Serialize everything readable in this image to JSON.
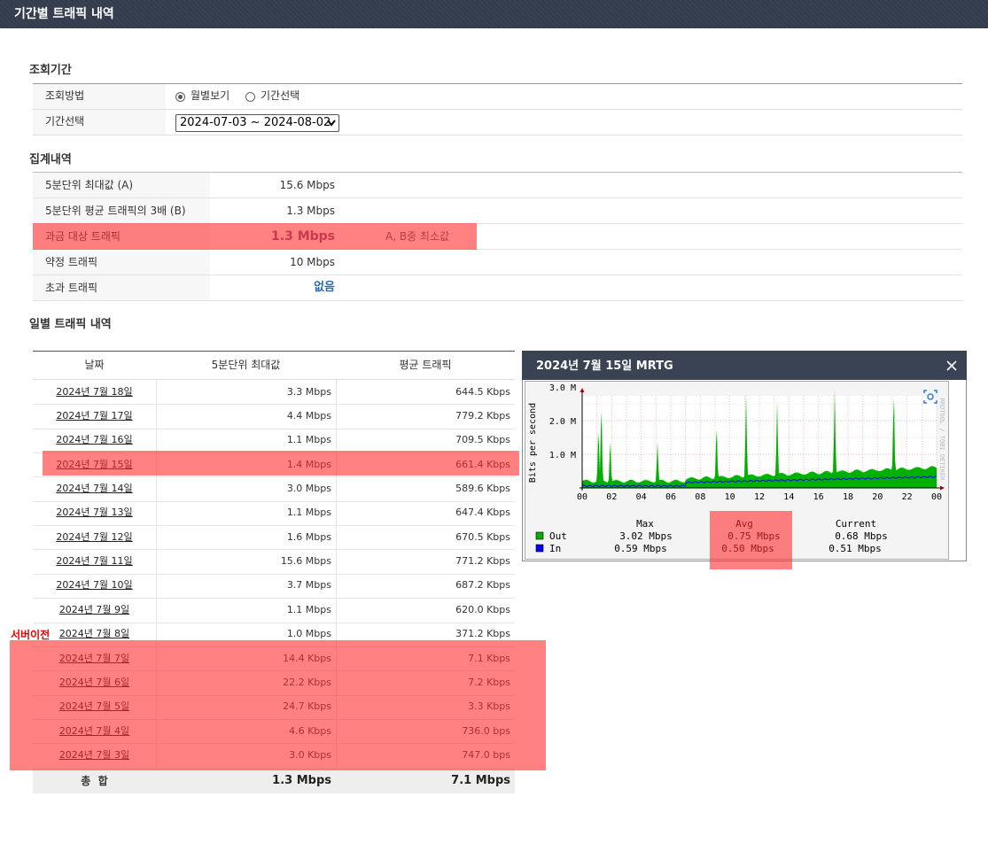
{
  "header": {
    "title": "기간별 트래픽 내역"
  },
  "query": {
    "title": "조회기간",
    "method_label": "조회방법",
    "options": [
      "월별보기",
      "기간선택"
    ],
    "period_label": "기간선택",
    "period_value": "2024-07-03 ~ 2024-08-02"
  },
  "summary": {
    "title": "집계내역",
    "rows": [
      {
        "label": "5분단위 최대값 (A)",
        "value": "15.6 Mbps"
      },
      {
        "label": "5분단위 평균 트래픽의 3배 (B)",
        "value": "1.3 Mbps"
      },
      {
        "label": "과금 대상 트래픽",
        "value": "1.3 Mbps",
        "note": "A, B중 최소값"
      },
      {
        "label": "약정 트래픽",
        "value": "10 Mbps"
      },
      {
        "label": "초과 트래픽",
        "value": "없음"
      }
    ]
  },
  "daily": {
    "title": "일별 트래픽 내역",
    "annotation": "서버이전",
    "columns": [
      "날짜",
      "5분단위 최대값",
      "평균 트래픽"
    ],
    "rows": [
      [
        "2024년 7월 18일",
        "3.3 Mbps",
        "644.5 Kbps"
      ],
      [
        "2024년 7월 17일",
        "4.4 Mbps",
        "779.2 Kbps"
      ],
      [
        "2024년 7월 16일",
        "1.1 Mbps",
        "709.5 Kbps"
      ],
      [
        "2024년 7월 15일",
        "1.4 Mbps",
        "661.4 Kbps"
      ],
      [
        "2024년 7월 14일",
        "3.0 Mbps",
        "589.6 Kbps"
      ],
      [
        "2024년 7월 13일",
        "1.1 Mbps",
        "647.4 Kbps"
      ],
      [
        "2024년 7월 12일",
        "1.6 Mbps",
        "670.5 Kbps"
      ],
      [
        "2024년 7월 11일",
        "15.6 Mbps",
        "771.2 Kbps"
      ],
      [
        "2024년 7월 10일",
        "3.7 Mbps",
        "687.2 Kbps"
      ],
      [
        "2024년 7월 9일",
        "1.1 Mbps",
        "620.0 Kbps"
      ],
      [
        "2024년 7월 8일",
        "1.0 Mbps",
        "371.2 Kbps"
      ],
      [
        "2024년 7월 7일",
        "14.4 Kbps",
        "7.1 Kbps"
      ],
      [
        "2024년 7월 6일",
        "22.2 Kbps",
        "7.2 Kbps"
      ],
      [
        "2024년 7월 5일",
        "24.7 Kbps",
        "3.3 Kbps"
      ],
      [
        "2024년 7월 4일",
        "4.6 Kbps",
        "736.0 bps"
      ],
      [
        "2024년 7월 3일",
        "3.0 Kbps",
        "747.0 bps"
      ]
    ],
    "total": [
      "총  합",
      "1.3 Mbps",
      "7.1 Mbps"
    ]
  },
  "mrtg": {
    "title": "2024년 7월 15일 MRTG",
    "y_label": "Bits per second",
    "yticks": [
      "3.0 M",
      "2.0 M",
      "1.0 M"
    ],
    "xticks": [
      "00",
      "02",
      "04",
      "06",
      "08",
      "10",
      "12",
      "14",
      "16",
      "18",
      "20",
      "22",
      "00"
    ],
    "watermark": "RRDTOOL / TOBI OETIKER",
    "legend": {
      "columns": [
        "Max",
        "Avg",
        "Current"
      ],
      "rows": [
        {
          "name": "Out",
          "color": "#00b000",
          "values": [
            "3.02 Mbps",
            "0.75 Mbps",
            "0.68 Mbps"
          ]
        },
        {
          "name": "In",
          "color": "#0000ff",
          "values": [
            "0.59 Mbps",
            "0.50 Mbps",
            "0.51 Mbps"
          ]
        }
      ]
    }
  }
}
